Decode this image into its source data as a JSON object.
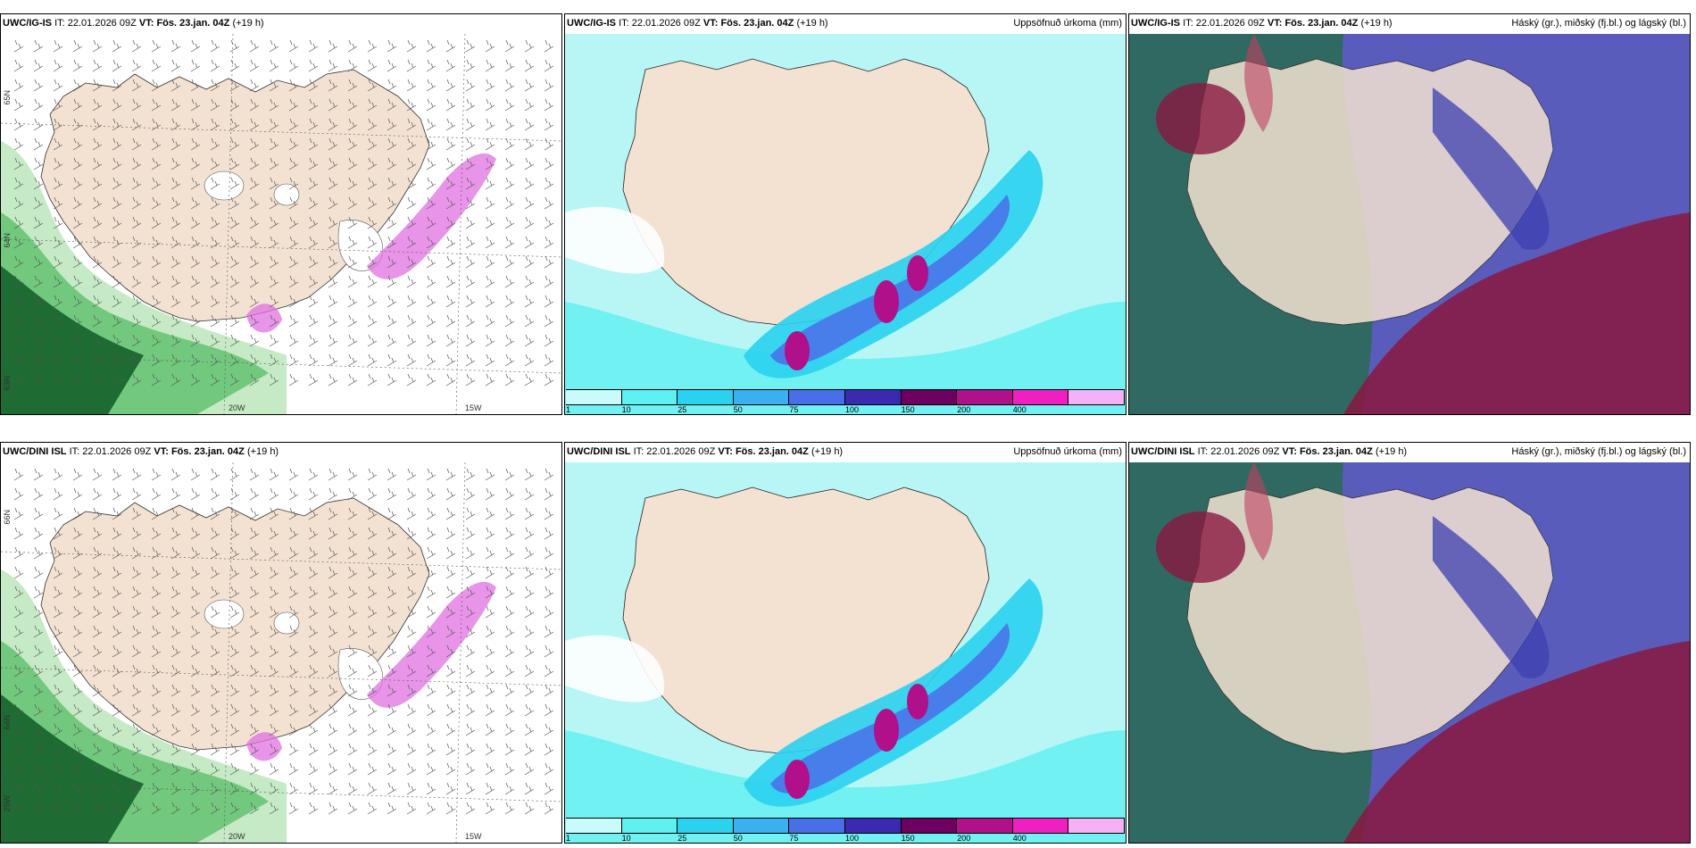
{
  "panels": [
    {
      "id": "r1c1",
      "model": "UWC/IG-IS",
      "it_prefix": "IT:",
      "it": "22.01.2026 09Z",
      "vt_prefix": "VT:",
      "vt": "Fös. 23.jan. 04Z",
      "lead": "(+19 h)",
      "right_title": "",
      "type": "wind-precip",
      "lat_labels": [
        "65N",
        "64N",
        "63N"
      ],
      "lon_labels": [
        "20W",
        "15W"
      ]
    },
    {
      "id": "r1c2",
      "model": "UWC/IG-IS",
      "it_prefix": "IT:",
      "it": "22.01.2026 09Z",
      "vt_prefix": "VT:",
      "vt": "Fös. 23.jan. 04Z",
      "lead": "(+19 h)",
      "right_title": "Uppsöfnuð úrkoma (mm)",
      "type": "accum",
      "colorbar": {
        "ticks": [
          "1",
          "10",
          "25",
          "50",
          "75",
          "100",
          "150",
          "200",
          "400"
        ],
        "colors": [
          "#c9fbfb",
          "#5ff0f0",
          "#2ad2f0",
          "#3ab0f0",
          "#4a6ee8",
          "#3a2ab0",
          "#6e0060",
          "#b0108a",
          "#f020c0",
          "#f6b0f6"
        ]
      }
    },
    {
      "id": "r1c3",
      "model": "UWC/IG-IS",
      "it_prefix": "IT:",
      "it": "22.01.2026 09Z",
      "vt_prefix": "VT:",
      "vt": "Fös. 23.jan. 04Z",
      "lead": "(+19 h)",
      "right_title": "Háský (gr.), miðský (fj.bl.) og lágský (bl.)",
      "type": "clouds"
    },
    {
      "id": "r2c1",
      "model": "UWC/DINI ISL",
      "it_prefix": "IT:",
      "it": "22.01.2026 09Z",
      "vt_prefix": "VT:",
      "vt": "Fös. 23.jan. 04Z",
      "lead": "(+19 h)",
      "right_title": "",
      "type": "wind-precip",
      "lat_labels": [
        "66N",
        "64N",
        "25W"
      ],
      "lon_labels": [
        "20W",
        "15W"
      ]
    },
    {
      "id": "r2c2",
      "model": "UWC/DINI ISL",
      "it_prefix": "IT:",
      "it": "22.01.2026 09Z",
      "vt_prefix": "VT:",
      "vt": "Fös. 23.jan. 04Z",
      "lead": "(+19 h)",
      "right_title": "Uppsöfnuð úrkoma (mm)",
      "type": "accum",
      "colorbar": {
        "ticks": [
          "1",
          "10",
          "25",
          "50",
          "75",
          "100",
          "150",
          "200",
          "400"
        ],
        "colors": [
          "#c9fbfb",
          "#5ff0f0",
          "#2ad2f0",
          "#3ab0f0",
          "#4a6ee8",
          "#3a2ab0",
          "#6e0060",
          "#b0108a",
          "#f020c0",
          "#f6b0f6"
        ]
      }
    },
    {
      "id": "r2c3",
      "model": "UWC/DINI ISL",
      "it_prefix": "IT:",
      "it": "22.01.2026 09Z",
      "vt_prefix": "VT:",
      "vt": "Fös. 23.jan. 04Z",
      "lead": "(+19 h)",
      "right_title": "Háský (gr.), miðský (fj.bl.) og lágský (bl.)",
      "type": "clouds"
    }
  ],
  "colors": {
    "land": "#f3e2d2",
    "sea_accum": "#b8f6f6",
    "wind_sea": "#ffffff",
    "precip_light": "#bfe8bf",
    "precip_mid": "#5cbf6a",
    "precip_dark": "#0f5a26",
    "snow_pink": "#e070e0",
    "cloud_high": "#2b6a57",
    "cloud_mid": "#3d3fb0",
    "cloud_low": "#8a1840"
  }
}
